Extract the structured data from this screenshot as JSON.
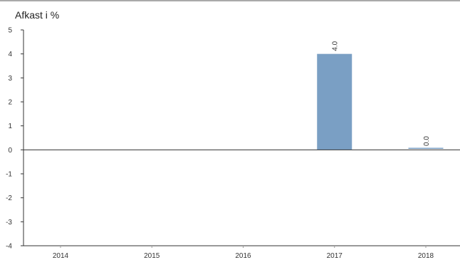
{
  "chart_data": {
    "type": "bar",
    "ylabel": "Afkast i %",
    "categories": [
      "2014",
      "2015",
      "2016",
      "2017",
      "2018"
    ],
    "values": [
      null,
      null,
      null,
      4.0,
      0.04
    ],
    "data_labels": [
      "",
      "",
      "",
      "4.0",
      "0.0"
    ],
    "ylim": [
      -4,
      5
    ],
    "yticks": [
      5,
      4,
      3,
      2,
      1,
      0,
      -1,
      -2,
      -3,
      -4
    ],
    "ytick_labels": [
      "5",
      "4",
      "3",
      "2",
      "1",
      "0",
      "-1",
      "-2",
      "-3",
      "-4"
    ],
    "grid": false,
    "colors": {
      "bar": "#7a9fc4",
      "axis": "#333333",
      "top_rule": "#555555"
    }
  }
}
